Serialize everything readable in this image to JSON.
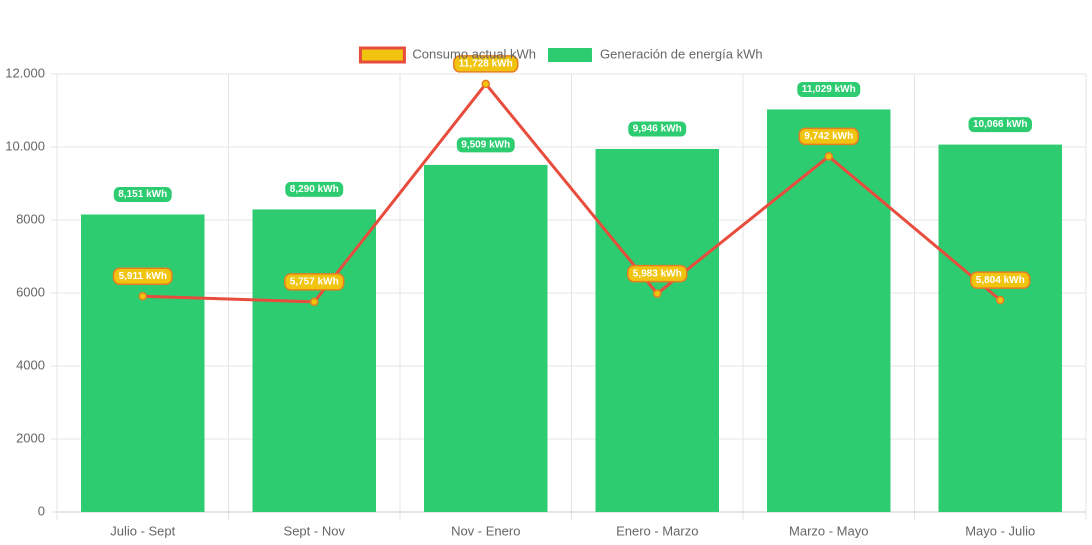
{
  "chart_data": {
    "type": "bar",
    "categories": [
      "Julio - Sept",
      "Sept - Nov",
      "Nov - Enero",
      "Enero - Marzo",
      "Marzo - Mayo",
      "Mayo - Julio"
    ],
    "series": [
      {
        "name": "Consumo actual kWh",
        "type": "line",
        "color": "#e74c3c",
        "point_color": "#f1c40f",
        "label_border": "#e67e22",
        "values": [
          5911,
          5757,
          11728,
          5983,
          9742,
          5804
        ],
        "value_labels": [
          "5,911 kWh",
          "5,757 kWh",
          "11,728 kWh",
          "5,983 kWh",
          "9,742 kWh",
          "5,804 kWh"
        ]
      },
      {
        "name": "Generación de energía kWh",
        "type": "bar",
        "color": "#2ecc71",
        "values": [
          8151,
          8290,
          9509,
          9946,
          11029,
          10066
        ],
        "value_labels": [
          "8,151 kWh",
          "8,290 kWh",
          "9,509 kWh",
          "9,946 kWh",
          "11,029 kWh",
          "10,066 kWh"
        ]
      }
    ],
    "ylim": [
      0,
      12000
    ],
    "yticks": [
      0,
      2000,
      4000,
      6000,
      8000,
      {
        "value": 10000,
        "label": "10.000"
      },
      {
        "value": 12000,
        "label": "12.000"
      }
    ],
    "grid": true
  }
}
